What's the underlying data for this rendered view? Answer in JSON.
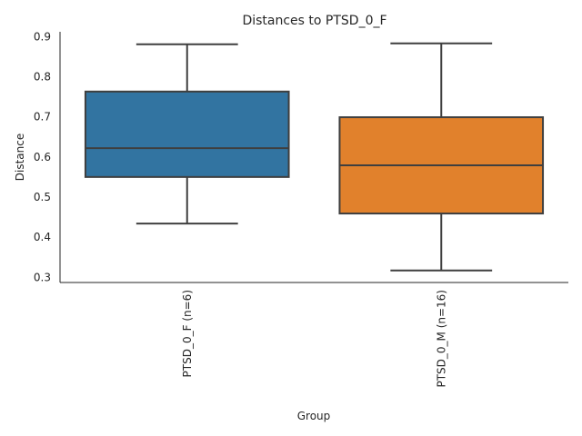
{
  "chart_data": {
    "type": "box",
    "title": "Distances to PTSD_0_F",
    "xlabel": "Group",
    "ylabel": "Distance",
    "ylim": [
      0.286,
      0.911
    ],
    "yticks": [
      0.3,
      0.4,
      0.5,
      0.6,
      0.7,
      0.8,
      0.9
    ],
    "ytick_labels": [
      "0.3",
      "0.4",
      "0.5",
      "0.6",
      "0.7",
      "0.8",
      "0.9"
    ],
    "grid": false,
    "categories": [
      "PTSD_0_F (n=6)",
      "PTSD_0_M (n=16)"
    ],
    "boxes": [
      {
        "name": "PTSD_0_F (n=6)",
        "whislo": 0.433,
        "q1": 0.549,
        "med": 0.621,
        "q3": 0.762,
        "whishi": 0.88,
        "color": "#3274a1"
      },
      {
        "name": "PTSD_0_M (n=16)",
        "whislo": 0.316,
        "q1": 0.458,
        "med": 0.578,
        "q3": 0.698,
        "whishi": 0.882,
        "color": "#e1812c"
      }
    ]
  }
}
